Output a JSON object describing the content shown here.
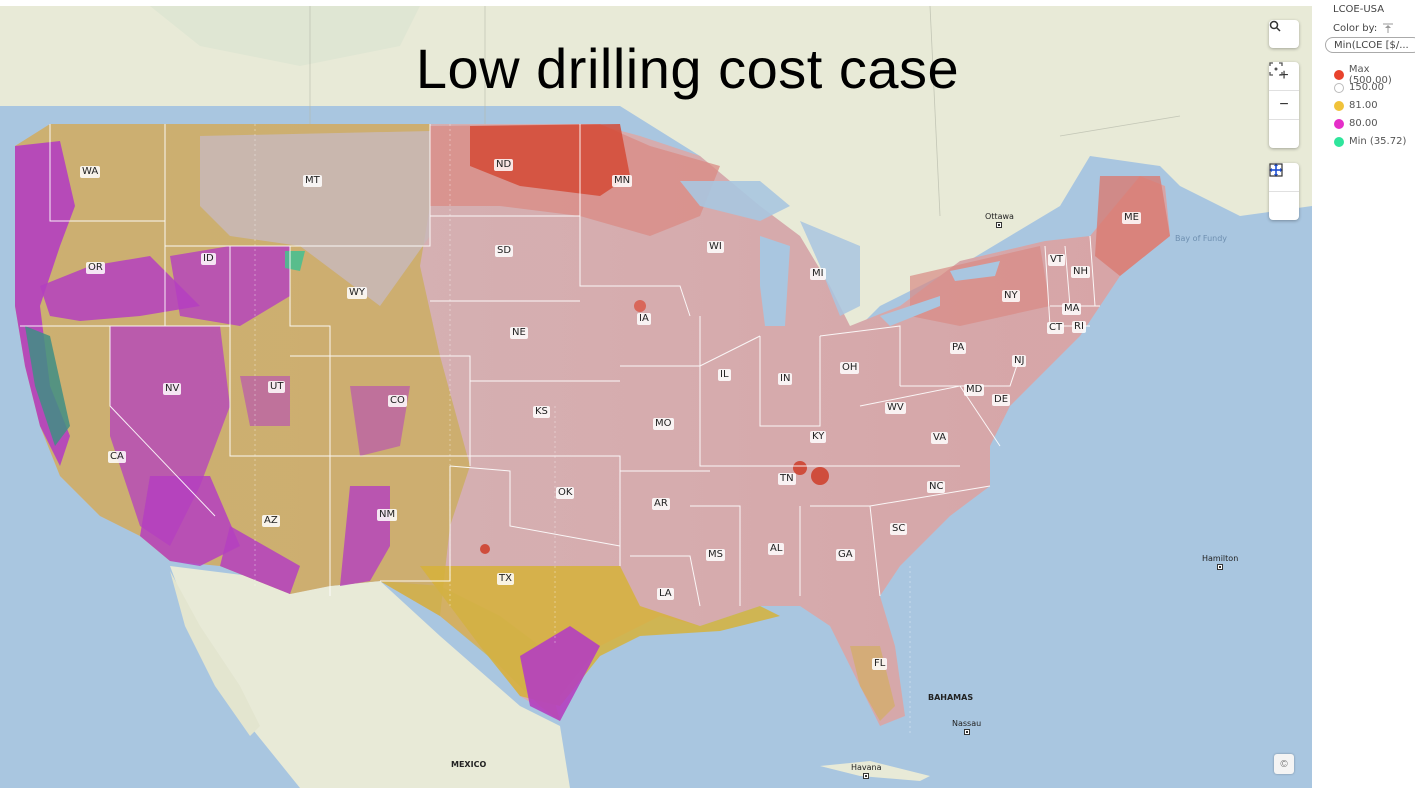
{
  "title": "Low drilling cost case",
  "panel": {
    "layer_name": "LCOE-USA",
    "color_by_label": "Color by:",
    "color_by_value": "Min(LCOE [$/...",
    "legend": [
      {
        "label": "Max (500.00)",
        "color": "#e8432d"
      },
      {
        "label": "150.00",
        "color": "#ffffff"
      },
      {
        "label": "81.00",
        "color": "#f0c23a"
      },
      {
        "label": "80.00",
        "color": "#e52fc8"
      },
      {
        "label": "Min (35.72)",
        "color": "#2ee59c"
      }
    ]
  },
  "controls": {
    "search_icon": "search-icon",
    "zoom_in": "+",
    "zoom_out": "−",
    "fit_icon": "fit-bounds-icon",
    "pan_icon": "pan-icon",
    "select_icon": "rectangle-select-icon",
    "attribution": "©"
  },
  "states": {
    "WA": "WA",
    "OR": "OR",
    "CA": "CA",
    "ID": "ID",
    "NV": "NV",
    "MT": "MT",
    "WY": "WY",
    "UT": "UT",
    "AZ": "AZ",
    "CO": "CO",
    "NM": "NM",
    "ND": "ND",
    "SD": "SD",
    "NE": "NE",
    "KS": "KS",
    "OK": "OK",
    "TX": "TX",
    "MN": "MN",
    "IA": "IA",
    "MO": "MO",
    "AR": "AR",
    "LA": "LA",
    "WI": "WI",
    "IL": "IL",
    "MI": "MI",
    "IN": "IN",
    "OH": "OH",
    "KY": "KY",
    "TN": "TN",
    "MS": "MS",
    "AL": "AL",
    "GA": "GA",
    "FL": "FL",
    "SC": "SC",
    "NC": "NC",
    "VA": "VA",
    "WV": "WV",
    "PA": "PA",
    "NY": "NY",
    "MD": "MD",
    "DE": "DE",
    "NJ": "NJ",
    "CT": "CT",
    "RI": "RI",
    "MA": "MA",
    "VT": "VT",
    "NH": "NH",
    "ME": "ME"
  },
  "places": {
    "ottawa": "Ottawa",
    "hamilton": "Hamilton",
    "nassau": "Nassau",
    "havana": "Havana",
    "bahamas": "BAHAMAS",
    "mexico": "MEXICO",
    "bay_of_fundy": "Bay of Fundy"
  }
}
